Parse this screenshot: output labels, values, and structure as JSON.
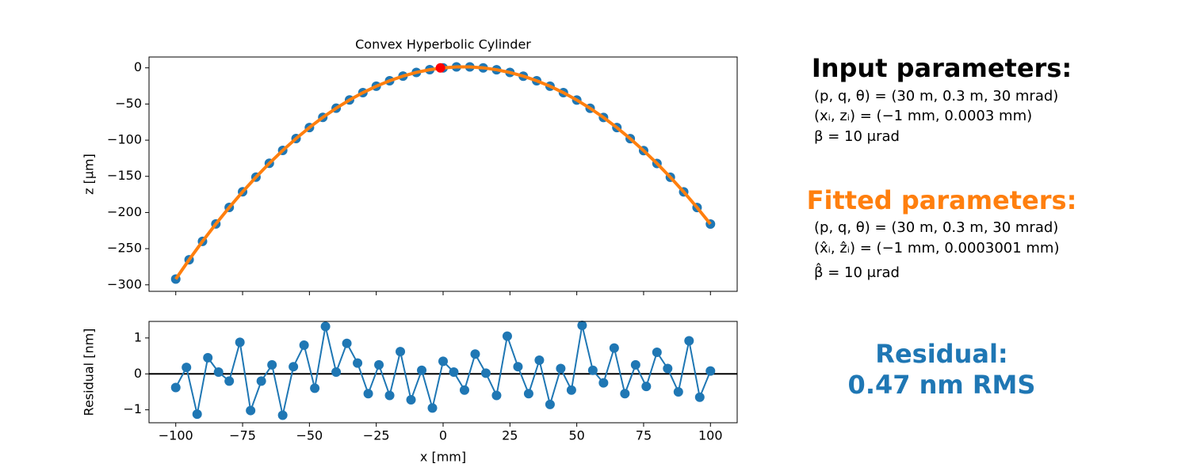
{
  "chart_data": [
    {
      "type": "line",
      "title": "Convex Hyperbolic Cylinder",
      "ylabel": "z [µm]",
      "xlim": [
        -110,
        110
      ],
      "ylim": [
        -309,
        15
      ],
      "xticks": [
        -100,
        -75,
        -50,
        -25,
        0,
        25,
        50,
        75,
        100
      ],
      "xtick_labels": false,
      "yticks": [
        {
          "value": -300,
          "label": "−300"
        },
        {
          "value": -250,
          "label": "−250"
        },
        {
          "value": -200,
          "label": "−200"
        },
        {
          "value": -150,
          "label": "−150"
        },
        {
          "value": -100,
          "label": "−100"
        },
        {
          "value": -50,
          "label": "−50"
        },
        0
      ],
      "series": [
        {
          "style": "markers",
          "color": "#1f77b4",
          "x": [
            -100,
            -95,
            -90,
            -85,
            -80,
            -75,
            -70,
            -65,
            -60,
            -55,
            -50,
            -45,
            -40,
            -35,
            -30,
            -25,
            -20,
            -15,
            -10,
            -5,
            0,
            5,
            10,
            15,
            20,
            25,
            30,
            35,
            40,
            45,
            50,
            55,
            60,
            65,
            70,
            75,
            80,
            85,
            90,
            95,
            100
          ],
          "values": [
            -292,
            -265.3,
            -239.9,
            -215.8,
            -193.0,
            -171.4,
            -151.1,
            -132.0,
            -114.2,
            -97.7,
            -82.5,
            -68.5,
            -55.8,
            -44.4,
            -34.3,
            -25.4,
            -17.8,
            -11.4,
            -6.3,
            -2.5,
            0,
            1.3,
            1.3,
            0.0,
            -2.6,
            -6.4,
            -11.5,
            -17.8,
            -25.4,
            -34.3,
            -44.5,
            -55.9,
            -68.6,
            -82.6,
            -97.9,
            -114.4,
            -132.2,
            -151.2,
            -171.5,
            -193.1,
            -216
          ]
        },
        {
          "style": "line",
          "color": "#ff7f0e",
          "x": [
            -100,
            -95,
            -90,
            -85,
            -80,
            -75,
            -70,
            -65,
            -60,
            -55,
            -50,
            -45,
            -40,
            -35,
            -30,
            -25,
            -20,
            -15,
            -10,
            -5,
            0,
            5,
            10,
            15,
            20,
            25,
            30,
            35,
            40,
            45,
            50,
            55,
            60,
            65,
            70,
            75,
            80,
            85,
            90,
            95,
            100
          ],
          "values": [
            -292,
            -265.3,
            -239.9,
            -215.8,
            -193.0,
            -171.4,
            -151.1,
            -132.0,
            -114.2,
            -97.7,
            -82.5,
            -68.5,
            -55.8,
            -44.4,
            -34.3,
            -25.4,
            -17.8,
            -11.4,
            -6.3,
            -2.5,
            0,
            1.3,
            1.3,
            0.0,
            -2.6,
            -6.4,
            -11.5,
            -17.8,
            -25.4,
            -34.3,
            -44.5,
            -55.9,
            -68.6,
            -82.6,
            -97.9,
            -114.4,
            -132.2,
            -151.2,
            -171.5,
            -193.1,
            -216
          ]
        },
        {
          "style": "markers",
          "color": "#ff0000",
          "x": [
            -1
          ],
          "values": [
            0
          ]
        }
      ]
    },
    {
      "type": "line",
      "xlabel": "x [mm]",
      "ylabel": "Residual [nm]",
      "xlim": [
        -110,
        110
      ],
      "ylim": [
        -1.36,
        1.46
      ],
      "xticks": [
        {
          "value": -100,
          "label": "−100"
        },
        {
          "value": -75,
          "label": "−75"
        },
        {
          "value": -50,
          "label": "−50"
        },
        {
          "value": -25,
          "label": "−25"
        },
        0,
        25,
        50,
        75,
        100
      ],
      "yticks": [
        {
          "value": -1,
          "label": "−1"
        },
        0,
        1
      ],
      "hlines": [
        0
      ],
      "hline_color": "#000000",
      "series": [
        {
          "style": "line+markers",
          "color": "#1f77b4",
          "x": [
            -100,
            -96,
            -92,
            -88,
            -84,
            -80,
            -76,
            -72,
            -68,
            -64,
            -60,
            -56,
            -52,
            -48,
            -44,
            -40,
            -36,
            -32,
            -28,
            -24,
            -20,
            -16,
            -12,
            -8,
            -4,
            0,
            4,
            8,
            12,
            16,
            20,
            24,
            28,
            32,
            36,
            40,
            44,
            48,
            52,
            56,
            60,
            64,
            68,
            72,
            76,
            80,
            84,
            88,
            92,
            96,
            100
          ],
          "values": [
            -0.38,
            0.18,
            -1.12,
            0.45,
            0.05,
            -0.2,
            0.88,
            -1.02,
            -0.2,
            0.25,
            -1.15,
            0.2,
            0.8,
            -0.4,
            1.32,
            0.05,
            0.85,
            0.3,
            -0.55,
            0.25,
            -0.6,
            0.62,
            -0.72,
            0.1,
            -0.95,
            0.35,
            0.05,
            -0.45,
            0.55,
            0.02,
            -0.6,
            1.05,
            0.2,
            -0.55,
            0.38,
            -0.85,
            0.15,
            -0.45,
            1.35,
            0.1,
            -0.25,
            0.72,
            -0.55,
            0.25,
            -0.35,
            0.6,
            0.15,
            -0.5,
            0.92,
            -0.65,
            0.08
          ]
        }
      ]
    }
  ],
  "text_panel": {
    "input_title": "Input parameters:",
    "input_lines": [
      "(p, q, θ) = (30 m, 0.3 m, 30 mrad)",
      "(xᵢ, zᵢ) = (−1 mm, 0.0003 mm)",
      "β = 10 μrad"
    ],
    "fitted_title": "Fitted parameters:",
    "fitted_lines": [
      "(p, q, θ) = (30 m, 0.3 m, 30 mrad)",
      "(x̂ᵢ, ẑᵢ) = (−1 mm, 0.0003001 mm)",
      "β̂ = 10 μrad"
    ],
    "residual_lines": [
      "Residual:",
      "0.47 nm RMS"
    ]
  }
}
